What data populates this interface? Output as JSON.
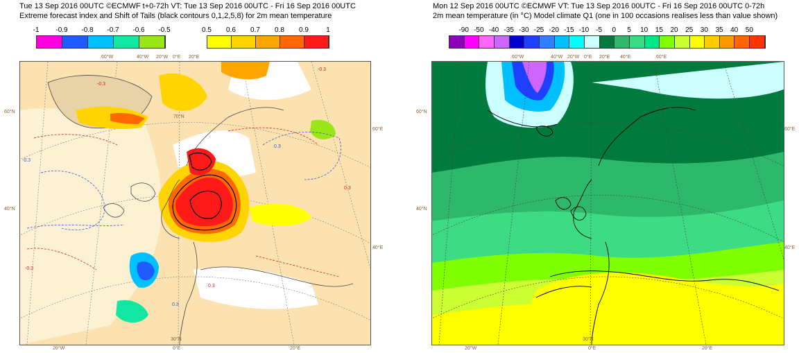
{
  "left_panel": {
    "title_line1": "Tue 13 Sep 2016 00UTC ©ECMWF t+0-72h  VT: Tue 13 Sep 2016 00UTC - Fri 16 Sep 2016 00UTC",
    "title_line2": "Extreme forecast index and Shift of Tails (black contours 0,1,2,5,8) for 2m mean temperature",
    "colorbar_neg": {
      "ticks": [
        "-1",
        "-0.9",
        "-0.8",
        "-0.7",
        "-0.6",
        "-0.5"
      ],
      "colors": [
        "#ff00dd",
        "#1e5cff",
        "#00c0ff",
        "#12e6a0",
        "#9be61a"
      ]
    },
    "colorbar_pos": {
      "ticks": [
        "0.5",
        "0.6",
        "0.7",
        "0.8",
        "0.9",
        "1"
      ],
      "colors": [
        "#ffff00",
        "#ffd400",
        "#ffa500",
        "#ff6a00",
        "#ff1a1a"
      ]
    },
    "lon_top": [
      "60°W",
      "40°W",
      "20°W",
      "0°E",
      "20°E"
    ],
    "lat_left": [
      "60°N",
      "40°N"
    ],
    "lat_right": [
      "60°E",
      "40°E"
    ],
    "lat_inner": [
      "70°N",
      "30°N"
    ],
    "lon_bottom": [
      "20°W",
      "0°E",
      "20°E"
    ],
    "contour_labels": [
      "-0.3",
      "-0.3",
      "-0.3",
      "0.3",
      "0.3",
      "0.3",
      "-0.3",
      "0.3"
    ]
  },
  "right_panel": {
    "title_line1": "Mon 12 Sep 2016 00UTC ©ECMWF VT: Tue 13 Sep 2016 00UTC - Fri 16 Sep 2016 00UTC   0-72h",
    "title_line2": "2m mean temperature (in °C)  Model climate Q1 (one in 100 occasions realises less than value shown)",
    "colorbar": {
      "ticks": [
        "-90",
        "-50",
        "-40",
        "-35",
        "-30",
        "-25",
        "-20",
        "-15",
        "-10",
        "-5",
        "0",
        "5",
        "10",
        "15",
        "20",
        "25",
        "30",
        "35",
        "40",
        "50"
      ],
      "colors": [
        "#8a00b8",
        "#ff00ff",
        "#ff66ff",
        "#cc66ff",
        "#0000cc",
        "#1f3fff",
        "#2f80ff",
        "#00bfff",
        "#00ffff",
        "#ccffff",
        "#007a3d",
        "#2eb86b",
        "#3ddc84",
        "#00e68a",
        "#7fff00",
        "#ccff33",
        "#ffff00",
        "#ffcc00",
        "#ff9900",
        "#ff6600",
        "#ff3300"
      ]
    },
    "lon_top": [
      "60°W",
      "40°W",
      "20°W",
      "0°E",
      "20°E",
      "40°E",
      "60°E"
    ],
    "lat_left": [
      "60°N",
      "40°N"
    ],
    "lat_right": [
      "60°E",
      "40°E"
    ],
    "lon_bottom": [
      "20°W",
      "30°N",
      "0°E",
      "20°E"
    ]
  }
}
